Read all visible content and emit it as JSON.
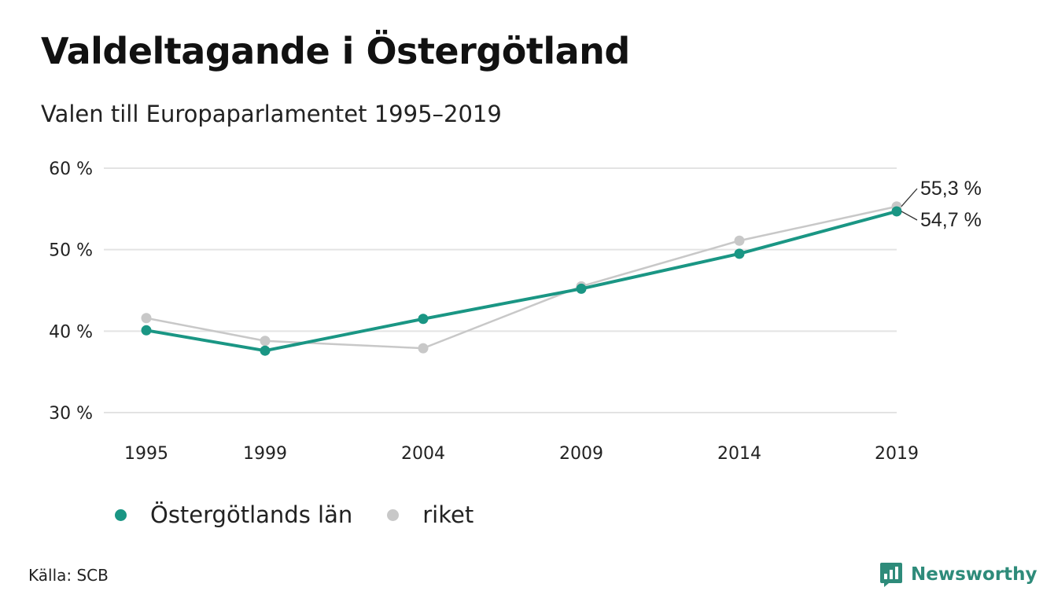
{
  "title": "Valdeltagande i Östergötland",
  "subtitle": "Valen till Europaparlamentet 1995–2019",
  "source": "Källa: SCB",
  "brand": {
    "name": "Newsworthy",
    "icon": "newsworthy-logo-icon",
    "color": "#2e8b7a"
  },
  "colors": {
    "ostergotland": "#1a9684",
    "riket": "#c8c8c8",
    "grid": "#e3e3e3"
  },
  "chart_data": {
    "type": "line",
    "title": "Valdeltagande i Östergötland",
    "subtitle": "Valen till Europaparlamentet 1995–2019",
    "xlabel": "",
    "ylabel": "",
    "ylim": [
      30,
      60
    ],
    "yticks": [
      30,
      40,
      50,
      60
    ],
    "ytick_labels": [
      "30 %",
      "40 %",
      "50 %",
      "60 %"
    ],
    "categories": [
      "1995",
      "1999",
      "2004",
      "2009",
      "2014",
      "2019"
    ],
    "grid": true,
    "legend_position": "bottom-left",
    "series": [
      {
        "name": "riket",
        "color": "#c8c8c8",
        "values": [
          41.6,
          38.8,
          37.9,
          45.5,
          51.1,
          55.3
        ]
      },
      {
        "name": "Östergötlands län",
        "color": "#1a9684",
        "values": [
          40.1,
          37.6,
          41.5,
          45.2,
          49.5,
          54.7
        ]
      }
    ],
    "end_labels": [
      "55,3 %",
      "54,7 %"
    ]
  }
}
